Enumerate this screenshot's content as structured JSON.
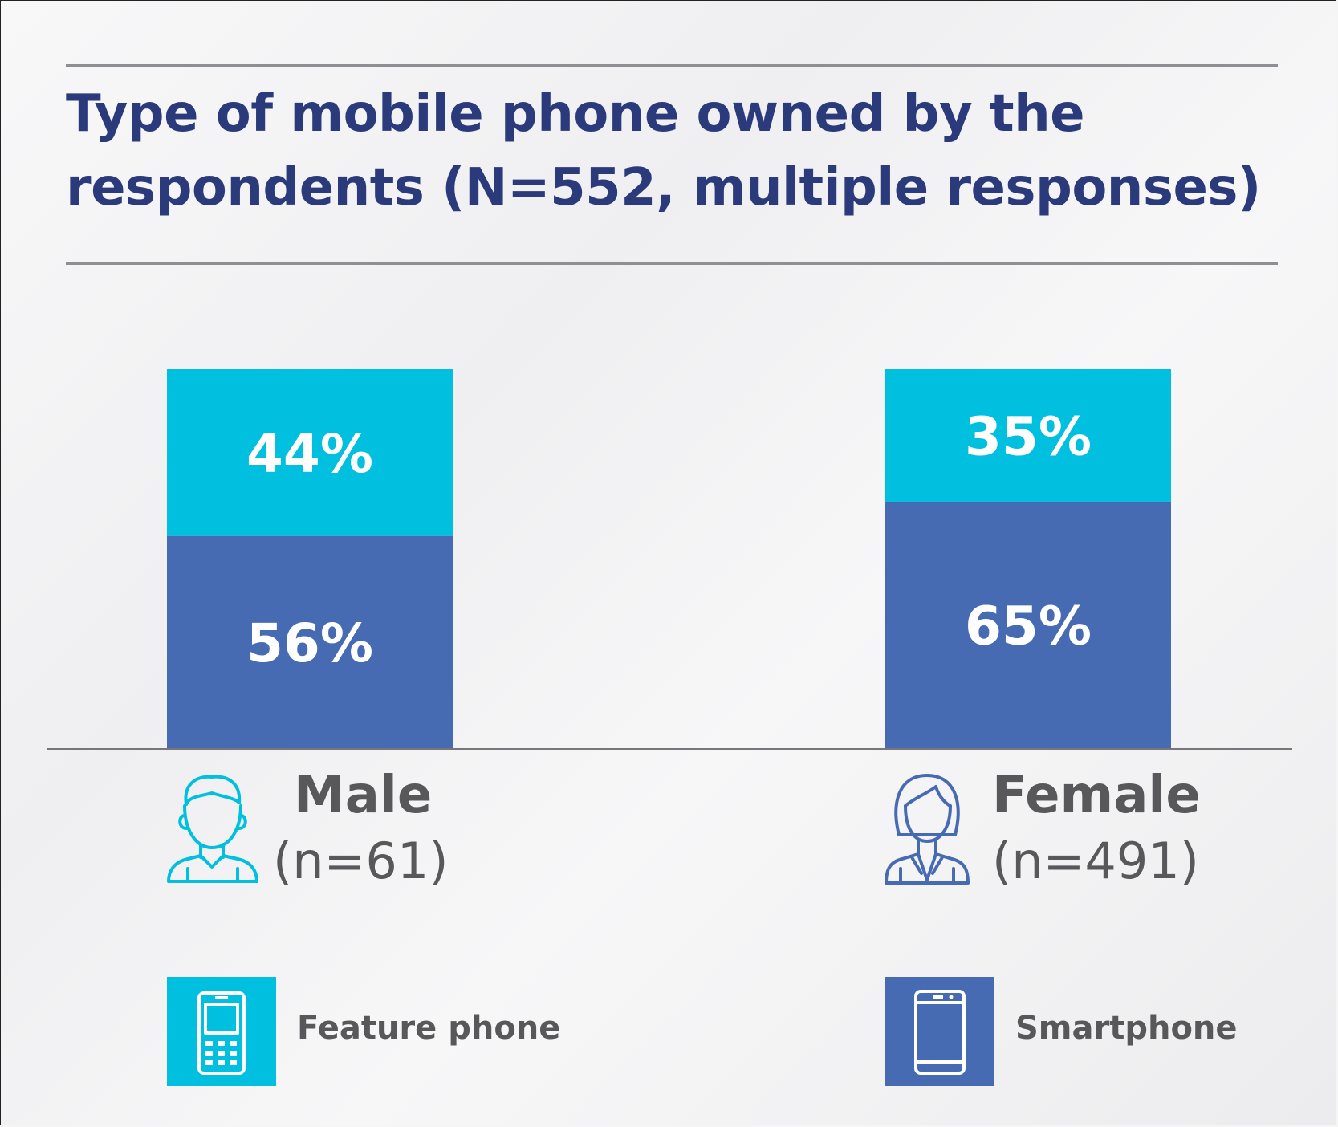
{
  "title": "Type of mobile phone owned by the respondents (N=552, multiple responses)",
  "colors": {
    "feature_phone": "#00bfdf",
    "smartphone": "#466bb3",
    "title": "#2b3a7a",
    "text": "#58585b",
    "icon_male": "#00bfdf",
    "icon_female": "#466bb3"
  },
  "groups": [
    {
      "name": "Male",
      "n_label": "(n=61)",
      "icon": "male-person-icon"
    },
    {
      "name": "Female",
      "n_label": "(n=491)",
      "icon": "female-person-icon"
    }
  ],
  "legend": [
    {
      "label": "Feature phone",
      "icon": "feature-phone-icon",
      "color": "#00bfdf"
    },
    {
      "label": "Smartphone",
      "icon": "smartphone-icon",
      "color": "#466bb3"
    }
  ],
  "chart_data": {
    "type": "bar",
    "stacked": true,
    "categories": [
      "Male",
      "Female"
    ],
    "series": [
      {
        "name": "Smartphone",
        "values": [
          56,
          65
        ],
        "labels": [
          "56%",
          "65%"
        ],
        "color": "#466bb3"
      },
      {
        "name": "Feature phone",
        "values": [
          44,
          35
        ],
        "labels": [
          "44%",
          "35%"
        ],
        "color": "#00bfdf"
      }
    ],
    "ylim": [
      0,
      100
    ],
    "title": "Type of mobile phone owned by the respondents (N=552, multiple responses)",
    "xlabel": "",
    "ylabel": "",
    "grid": false,
    "legend_position": "bottom"
  }
}
